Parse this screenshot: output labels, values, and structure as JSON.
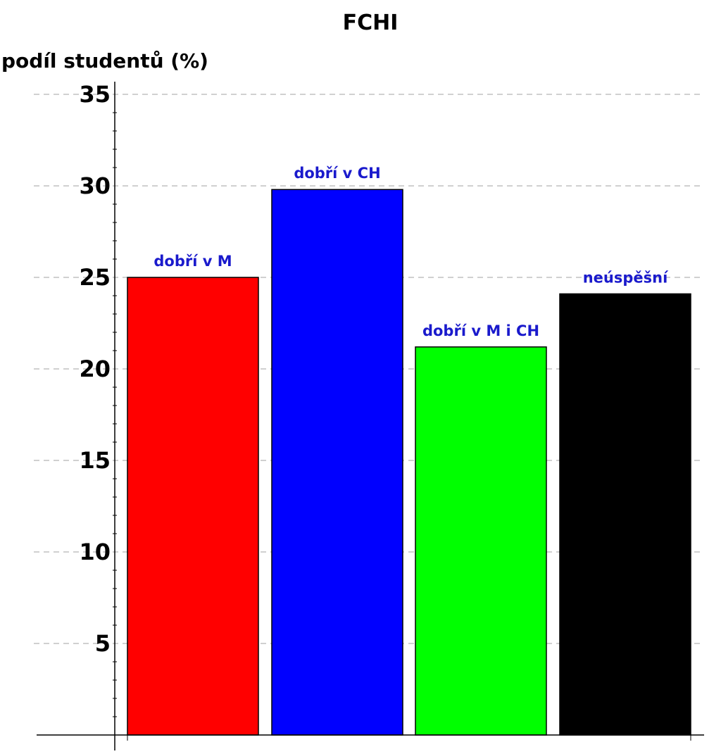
{
  "chart_data": {
    "type": "bar",
    "title": "FCHI",
    "ylabel": "podíl studentů (%)",
    "xlabel": "",
    "categories": [
      "dobří v M",
      "dobří v CH",
      "dobří v M i CH",
      "neúspěšní"
    ],
    "values": [
      25.0,
      29.8,
      21.2,
      24.1
    ],
    "colors": [
      "#ff0000",
      "#0000ff",
      "#00ff00",
      "#000000"
    ],
    "label_color": "#1a1acc",
    "ylim": [
      0,
      35
    ],
    "yticks": [
      5,
      10,
      15,
      20,
      25,
      30,
      35
    ],
    "grid": true,
    "legend": "none"
  }
}
